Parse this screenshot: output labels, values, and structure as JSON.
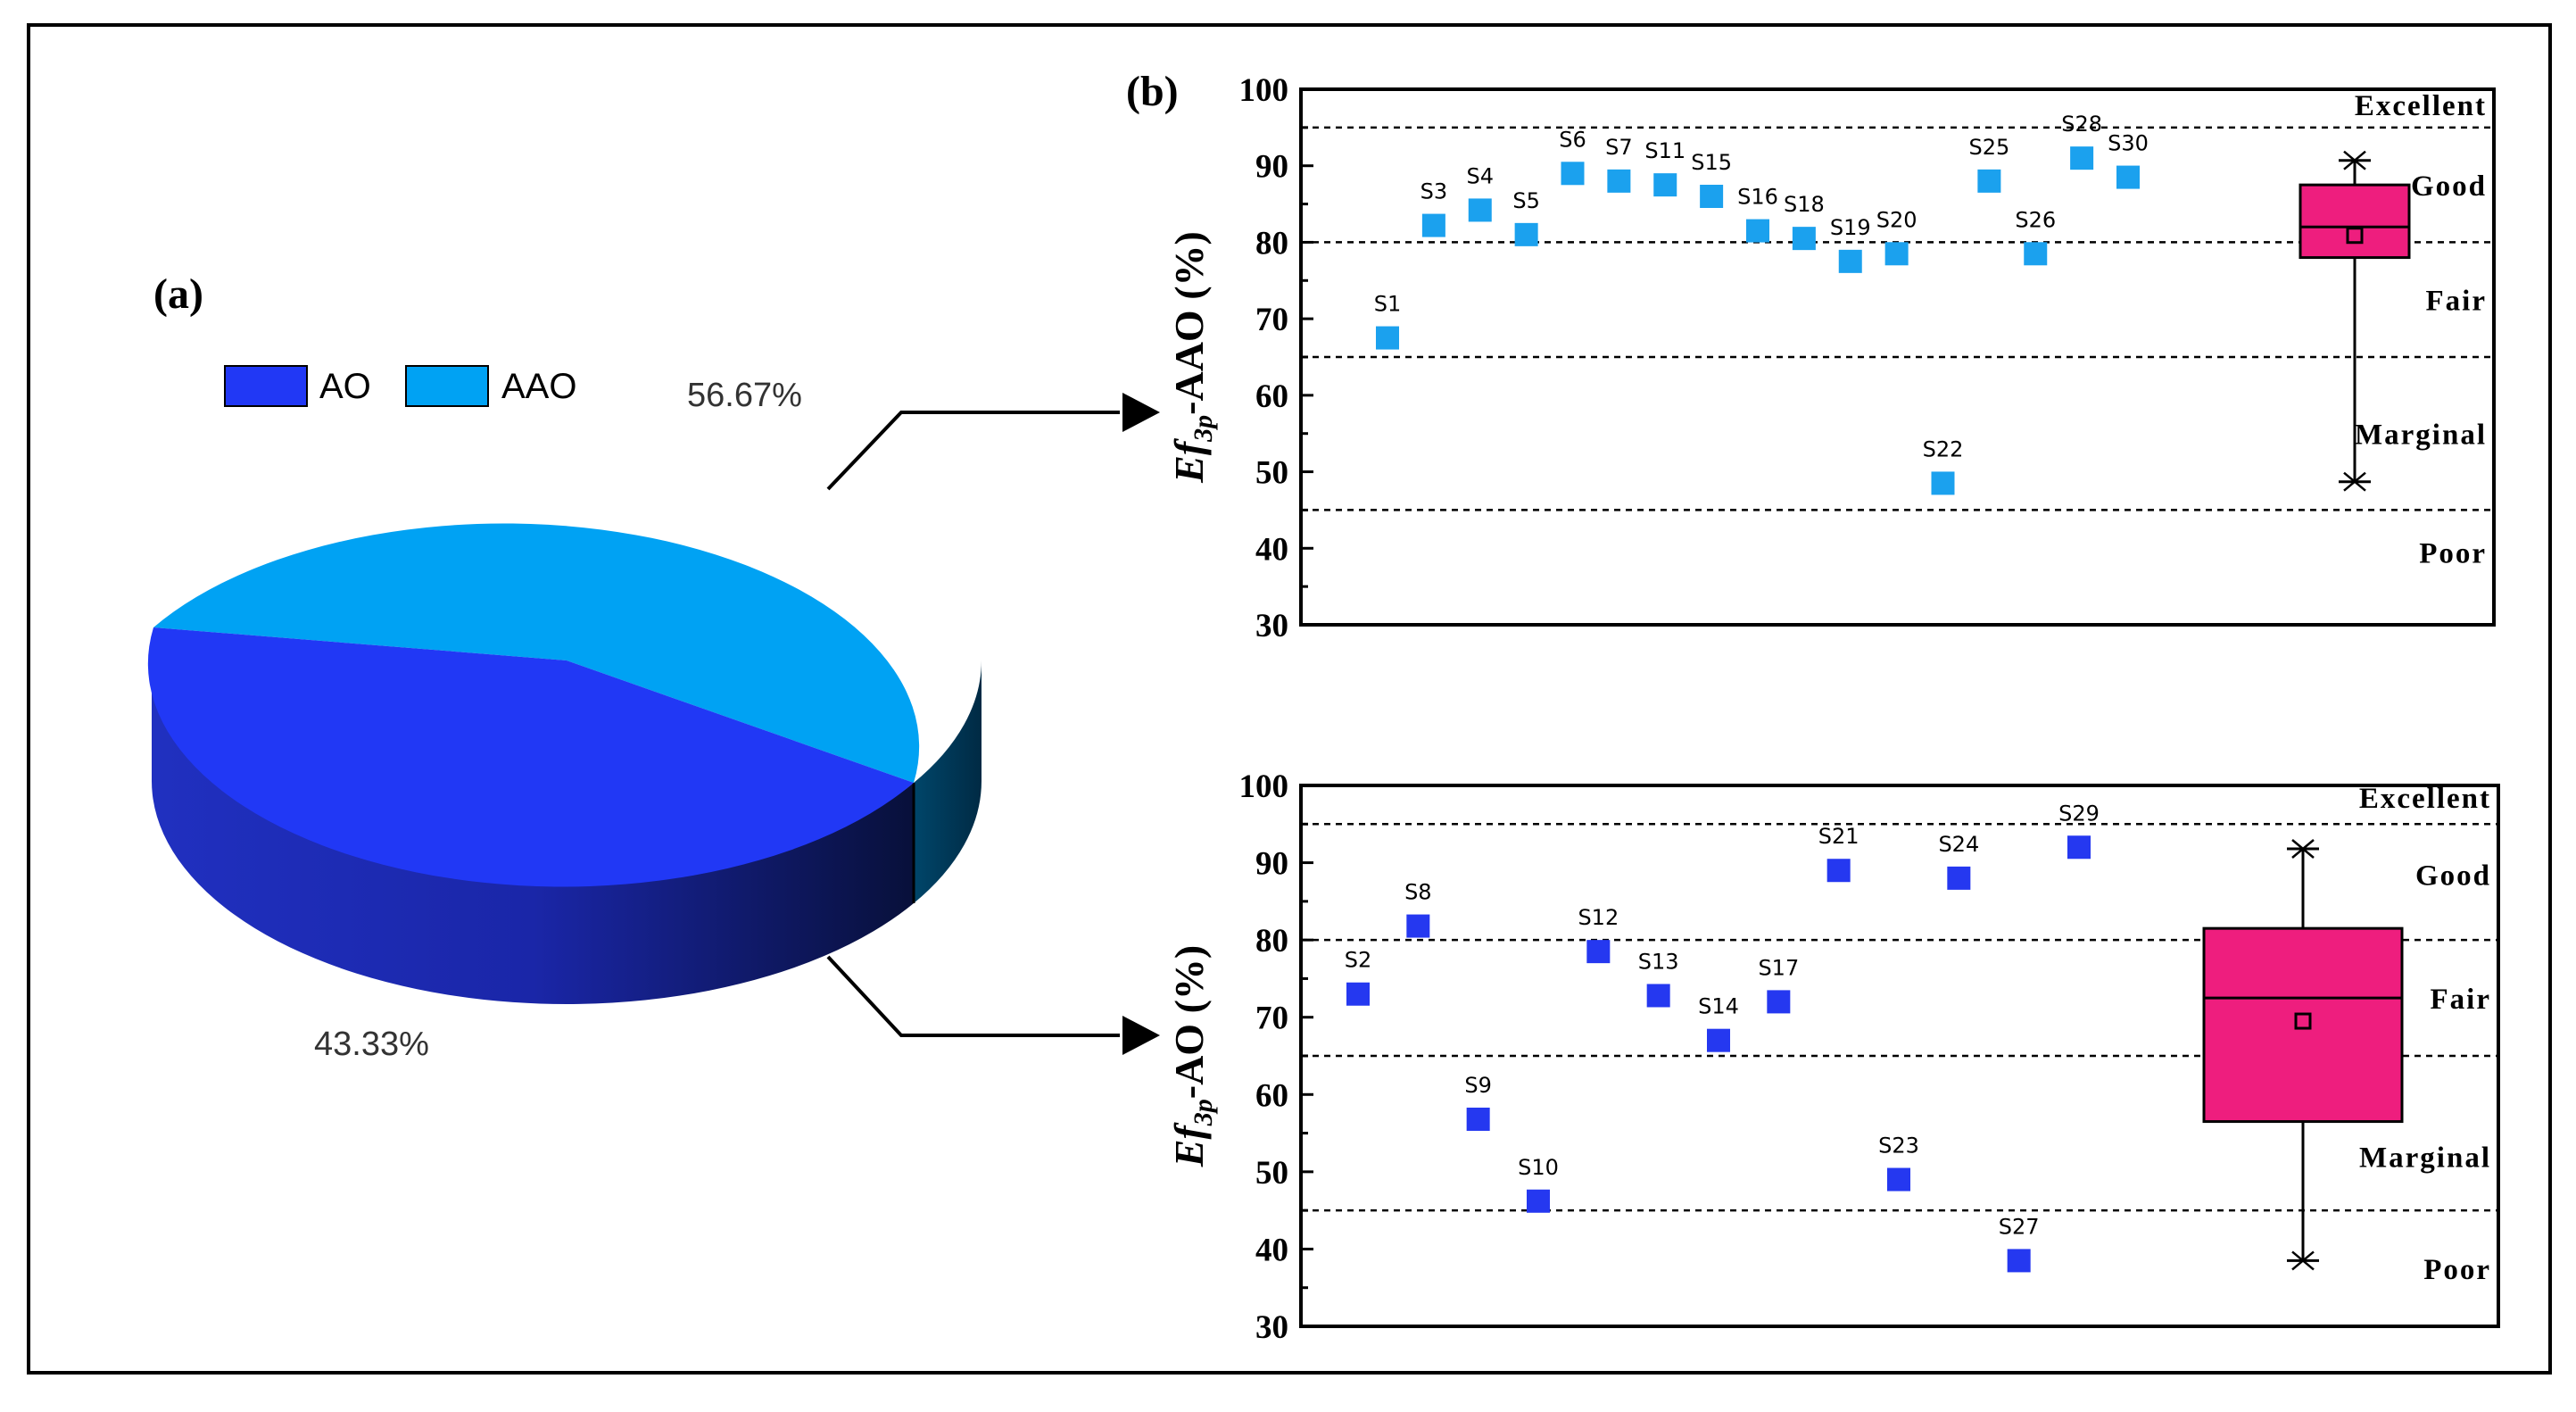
{
  "figure": {
    "panel_a_label": "(a)",
    "panel_b_label": "(b)"
  },
  "chart_data": [
    {
      "type": "pie",
      "title": "(a)",
      "style": "3d",
      "slices": [
        {
          "name": "AO",
          "value": 43.33,
          "label": "43.33%",
          "color": "#2138F5"
        },
        {
          "name": "AAO",
          "value": 56.67,
          "label": "56.67%",
          "color": "#00A2F3"
        }
      ],
      "legend": [
        "AO",
        "AAO"
      ],
      "legend_position": "top-left"
    },
    {
      "type": "scatter",
      "title": "(b)",
      "ylabel_main": "Ef",
      "ylabel_sub": "3p",
      "ylabel_rest": "-AAO (%)",
      "ylim": [
        30,
        100
      ],
      "yticks": [
        30,
        40,
        50,
        60,
        70,
        80,
        90,
        100
      ],
      "point_color": "#1BA1EE",
      "points": [
        {
          "label": "S1",
          "value": 67.5
        },
        {
          "label": "S3",
          "value": 82.2
        },
        {
          "label": "S4",
          "value": 84.2
        },
        {
          "label": "S5",
          "value": 81.0
        },
        {
          "label": "S6",
          "value": 89.0
        },
        {
          "label": "S7",
          "value": 88.0
        },
        {
          "label": "S11",
          "value": 87.5
        },
        {
          "label": "S15",
          "value": 86.0
        },
        {
          "label": "S16",
          "value": 81.5
        },
        {
          "label": "S18",
          "value": 80.5
        },
        {
          "label": "S19",
          "value": 77.5
        },
        {
          "label": "S20",
          "value": 78.5
        },
        {
          "label": "S22",
          "value": 48.5
        },
        {
          "label": "S25",
          "value": 88.0
        },
        {
          "label": "S26",
          "value": 78.5
        },
        {
          "label": "S28",
          "value": 91.0
        },
        {
          "label": "S30",
          "value": 88.5
        }
      ],
      "thresholds": [
        95,
        80,
        65,
        45
      ],
      "categories": [
        "Excellent",
        "Good",
        "Fair",
        "Marginal",
        "Poor"
      ],
      "category_values": [
        98,
        87.5,
        72.5,
        55,
        39.5
      ],
      "boxplot": {
        "min": 48.7,
        "q1": 78.0,
        "median": 82.0,
        "q3": 87.5,
        "max": 90.7,
        "mean": 80.9,
        "color": "#EE1E7E"
      }
    },
    {
      "type": "scatter",
      "ylabel_main": "Ef",
      "ylabel_sub": "3p",
      "ylabel_rest": "-AO (%)",
      "ylim": [
        30,
        100
      ],
      "yticks": [
        30,
        40,
        50,
        60,
        70,
        80,
        90,
        100
      ],
      "point_color": "#2538F0",
      "points": [
        {
          "label": "S2",
          "value": 73.0
        },
        {
          "label": "S8",
          "value": 81.8
        },
        {
          "label": "S9",
          "value": 56.8
        },
        {
          "label": "S10",
          "value": 46.2
        },
        {
          "label": "S12",
          "value": 78.5
        },
        {
          "label": "S13",
          "value": 72.8
        },
        {
          "label": "S14",
          "value": 67.0
        },
        {
          "label": "S17",
          "value": 72.0
        },
        {
          "label": "S21",
          "value": 89.0
        },
        {
          "label": "S23",
          "value": 49.0
        },
        {
          "label": "S24",
          "value": 88.0
        },
        {
          "label": "S27",
          "value": 38.5
        },
        {
          "label": "S29",
          "value": 92.0
        }
      ],
      "thresholds": [
        95,
        80,
        65,
        45
      ],
      "categories": [
        "Excellent",
        "Good",
        "Fair",
        "Marginal",
        "Poor"
      ],
      "category_values": [
        98.5,
        88.5,
        72.5,
        52,
        37.5
      ],
      "boxplot": {
        "min": 38.5,
        "q1": 56.5,
        "median": 72.5,
        "q3": 81.5,
        "max": 91.8,
        "mean": 69.5,
        "color": "#EE1E7E"
      }
    }
  ]
}
